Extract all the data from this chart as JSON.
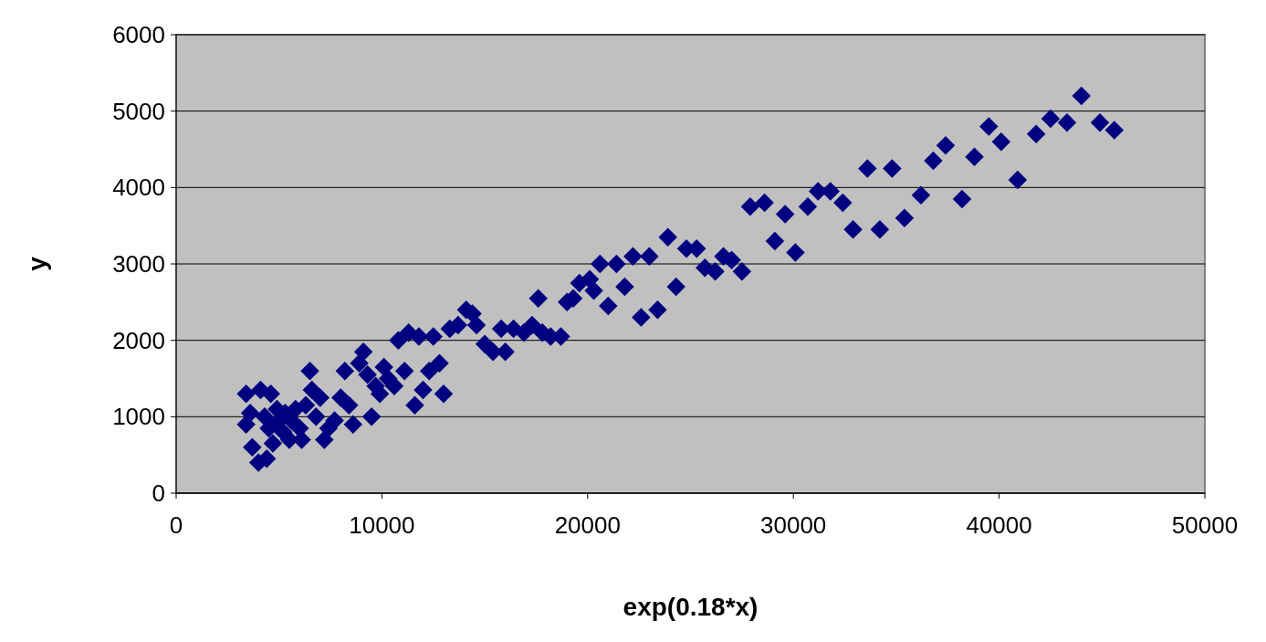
{
  "chart_data": {
    "type": "scatter",
    "xlabel": "exp(0.18*x)",
    "ylabel": "y",
    "xlim": [
      0,
      50000
    ],
    "xticks": [
      0,
      10000,
      20000,
      30000,
      40000,
      50000
    ],
    "ylim": [
      0,
      6000
    ],
    "yticks": [
      0,
      1000,
      2000,
      3000,
      4000,
      5000,
      6000
    ],
    "grid": "y",
    "marker": "diamond",
    "series": [
      {
        "color": "#000080",
        "x": [
          3400,
          3400,
          3600,
          3700,
          4000,
          4100,
          4400,
          4300,
          4500,
          4600,
          4700,
          4900,
          5000,
          5200,
          5300,
          5500,
          5600,
          5800,
          6000,
          6100,
          6300,
          6500,
          6600,
          6800,
          7000,
          7200,
          7400,
          7700,
          8000,
          8200,
          8400,
          8600,
          8900,
          9100,
          9300,
          9500,
          9700,
          9900,
          10100,
          10300,
          10600,
          10800,
          11100,
          11300,
          11600,
          11800,
          12000,
          12300,
          12500,
          12800,
          13000,
          13300,
          13700,
          14100,
          14400,
          14600,
          15000,
          15400,
          15800,
          16000,
          16400,
          16900,
          17300,
          17600,
          17800,
          18200,
          18700,
          19000,
          19300,
          19600,
          20100,
          20300,
          20600,
          21000,
          21400,
          21800,
          22200,
          22600,
          23000,
          23400,
          23900,
          24300,
          24800,
          25300,
          25700,
          26200,
          26600,
          27000,
          27500,
          27900,
          28600,
          29100,
          29600,
          30100,
          30700,
          31200,
          31800,
          32400,
          32900,
          33600,
          34200,
          34800,
          35400,
          36200,
          36800,
          37400,
          38200,
          38800,
          39500,
          40100,
          40900,
          41800,
          42500,
          43300,
          44000,
          44900,
          45600
        ],
        "values": [
          1300,
          900,
          1050,
          600,
          400,
          1350,
          450,
          1000,
          850,
          1300,
          650,
          1100,
          950,
          800,
          1050,
          700,
          950,
          1100,
          850,
          700,
          1150,
          1600,
          1350,
          1000,
          1250,
          700,
          850,
          950,
          1250,
          1600,
          1150,
          900,
          1700,
          1850,
          1550,
          1000,
          1400,
          1300,
          1650,
          1500,
          1400,
          2000,
          1600,
          2100,
          1150,
          2050,
          1350,
          1600,
          2050,
          1700,
          1300,
          2150,
          2200,
          2400,
          2350,
          2200,
          1950,
          1850,
          2150,
          1850,
          2150,
          2100,
          2200,
          2550,
          2100,
          2050,
          2050,
          2500,
          2550,
          2750,
          2800,
          2650,
          3000,
          2450,
          3000,
          2700,
          3100,
          2300,
          3100,
          2400,
          3350,
          2700,
          3200,
          3200,
          2950,
          2900,
          3100,
          3050,
          2900,
          3750,
          3800,
          3300,
          3650,
          3150,
          3750,
          3950,
          3950,
          3800,
          3450,
          4250,
          3450,
          4250,
          3600,
          3900,
          4350,
          4550,
          3850,
          4400,
          4800,
          4600,
          4100,
          4700,
          4900,
          4850,
          5200,
          4850,
          4750
        ]
      }
    ]
  }
}
